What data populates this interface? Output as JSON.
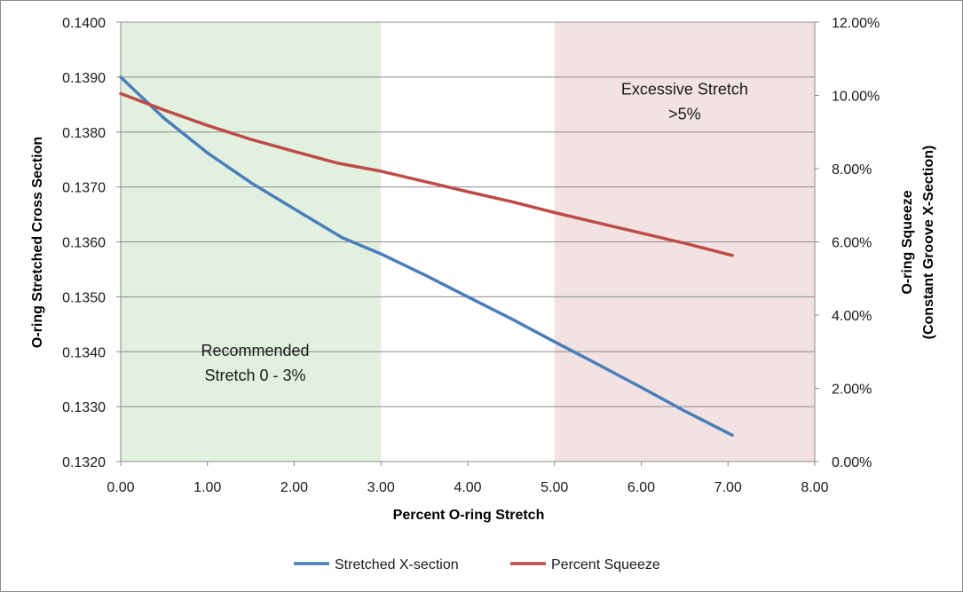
{
  "chart_data": {
    "type": "line",
    "title": "",
    "xlabel": "Percent O-ring Stretch",
    "ylabel": "O-ring Stretched Cross Section",
    "y2label_line1": "O-ring Squeeze",
    "y2label_line2": "(Constant Groove X-Section)",
    "xlim": [
      0,
      8
    ],
    "ylim": [
      0.132,
      0.14
    ],
    "y2lim": [
      0,
      0.12
    ],
    "x_ticks": [
      "0.00",
      "1.00",
      "2.00",
      "3.00",
      "4.00",
      "5.00",
      "6.00",
      "7.00",
      "8.00"
    ],
    "y_ticks": [
      "0.1320",
      "0.1330",
      "0.1340",
      "0.1350",
      "0.1360",
      "0.1370",
      "0.1380",
      "0.1390",
      "0.1400"
    ],
    "y2_ticks": [
      "0.00%",
      "2.00%",
      "4.00%",
      "6.00%",
      "8.00%",
      "10.00%",
      "12.00%"
    ],
    "regions": [
      {
        "name": "recommended",
        "x_start": 0,
        "x_end": 3,
        "color": "#e2f0e0",
        "label_line1": "Recommended",
        "label_line2": "Stretch 0 - 3%",
        "label_x": 1.55,
        "label_y": 0.13392
      },
      {
        "name": "excessive",
        "x_start": 5,
        "x_end": 8,
        "color": "#f2e2e2",
        "label_line1": "Excessive Stretch",
        "label_line2": ">5%",
        "label_x": 6.5,
        "label_y": 0.13868
      }
    ],
    "series": [
      {
        "name": "Stretched X-section",
        "axis": "left",
        "color": "#4a7ebb",
        "x": [
          0,
          0.5,
          1.0,
          1.5,
          2.0,
          2.55,
          3.0,
          3.5,
          4.0,
          4.5,
          5.0,
          5.5,
          6.0,
          6.5,
          7.05
        ],
        "values": [
          0.139,
          0.13825,
          0.13762,
          0.13708,
          0.1366,
          0.13608,
          0.13578,
          0.1354,
          0.135,
          0.1346,
          0.13418,
          0.13377,
          0.13335,
          0.13292,
          0.13248
        ]
      },
      {
        "name": "Percent Squeeze",
        "axis": "right",
        "color": "#be4b48",
        "x": [
          0,
          0.5,
          1.0,
          1.5,
          2.0,
          2.5,
          3.0,
          3.5,
          4.0,
          4.5,
          5.0,
          5.5,
          6.0,
          6.5,
          7.05
        ],
        "values": [
          0.1005,
          0.096,
          0.0918,
          0.088,
          0.0847,
          0.0815,
          0.0793,
          0.0765,
          0.0737,
          0.071,
          0.068,
          0.0652,
          0.0624,
          0.0596,
          0.0563
        ]
      }
    ],
    "legend_position": "bottom"
  }
}
